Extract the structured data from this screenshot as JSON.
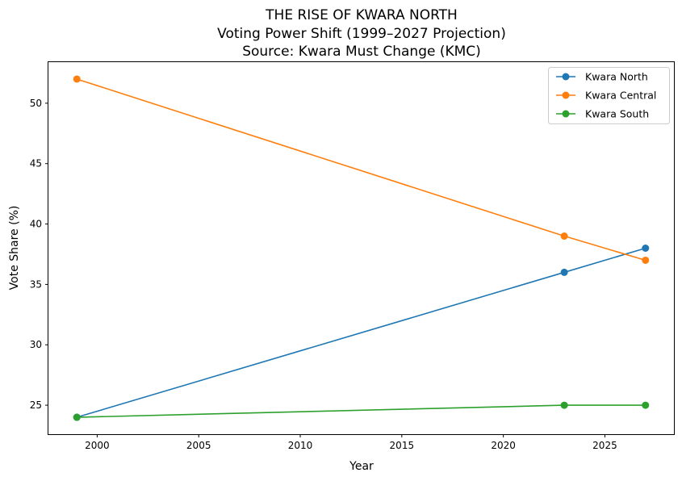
{
  "chart_data": {
    "type": "line",
    "title_lines": [
      "THE RISE OF KWARA NORTH",
      "Voting Power Shift (1999–2027 Projection)",
      "Source: Kwara Must Change (KMC)"
    ],
    "xlabel": "Year",
    "ylabel": "Vote Share (%)",
    "x": [
      1999,
      2023,
      2027
    ],
    "xlim": [
      1997.6,
      2028.4
    ],
    "ylim": [
      22.6,
      53.4
    ],
    "xticks": [
      2000,
      2005,
      2010,
      2015,
      2020,
      2025
    ],
    "yticks": [
      25,
      30,
      35,
      40,
      45,
      50
    ],
    "grid": false,
    "legend_position": "top-right",
    "series": [
      {
        "name": "Kwara North",
        "color": "#1f77b4",
        "values": [
          24,
          36,
          38
        ]
      },
      {
        "name": "Kwara Central",
        "color": "#ff7f0e",
        "values": [
          52,
          39,
          37
        ]
      },
      {
        "name": "Kwara South",
        "color": "#2ca02c",
        "values": [
          24,
          25,
          25
        ]
      }
    ]
  }
}
